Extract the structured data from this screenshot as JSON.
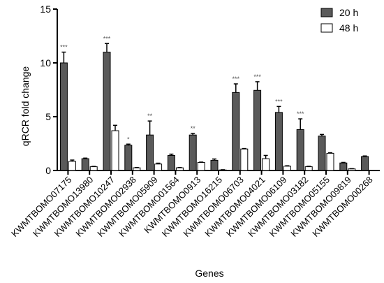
{
  "chart_data": {
    "type": "bar",
    "title": "",
    "xlabel": "Genes",
    "ylabel": "qRCR fold change",
    "ylim": [
      0,
      15
    ],
    "yticks": [
      0,
      5,
      10,
      15
    ],
    "grid": false,
    "legend_position": "top-right",
    "categories": [
      "KWMTBOMO07175",
      "KWMTBOMO13980",
      "KWMTBOMO10247",
      "KWMTBOMO02938",
      "KWMTBOMO05909",
      "KWMTBOMO01564",
      "KWMTBOMO0913",
      "KWMTBOMO16215",
      "KWMTBOMO06703",
      "KWMTBOMO04021",
      "KWMTBOMO06109",
      "KWMTBOMO03182",
      "KWMTBOMO05155",
      "KWMTBOMO09819",
      "KWMTBOMO00268"
    ],
    "series": [
      {
        "name": "20 h",
        "color": "#5a5a5a",
        "values": [
          10.0,
          1.1,
          11.0,
          2.35,
          3.3,
          1.4,
          3.3,
          0.95,
          7.25,
          7.45,
          5.4,
          3.8,
          3.2,
          0.7,
          1.3
        ],
        "errors": [
          1.0,
          0.05,
          0.8,
          0.1,
          1.3,
          0.12,
          0.15,
          0.12,
          0.8,
          0.8,
          0.55,
          1.0,
          0.15,
          0.05,
          0.05
        ],
        "significance": [
          "***",
          "",
          "***",
          "*",
          "**",
          "",
          "**",
          "",
          "***",
          "***",
          "***",
          "***",
          "",
          "",
          ""
        ]
      },
      {
        "name": "48 h",
        "color": "#ffffff",
        "values": [
          0.85,
          0.35,
          3.7,
          0.25,
          0.6,
          0.25,
          0.75,
          0.05,
          2.0,
          1.1,
          0.4,
          0.35,
          1.6,
          0.15,
          0.0
        ],
        "errors": [
          0.12,
          0.03,
          0.5,
          0.03,
          0.08,
          0.03,
          0.03,
          0.02,
          0.04,
          0.3,
          0.04,
          0.04,
          0.05,
          0.02,
          0.0
        ],
        "significance": [
          "",
          "",
          "",
          "",
          "",
          "",
          "",
          "",
          "",
          "",
          "",
          "",
          "",
          "",
          ""
        ]
      }
    ]
  }
}
